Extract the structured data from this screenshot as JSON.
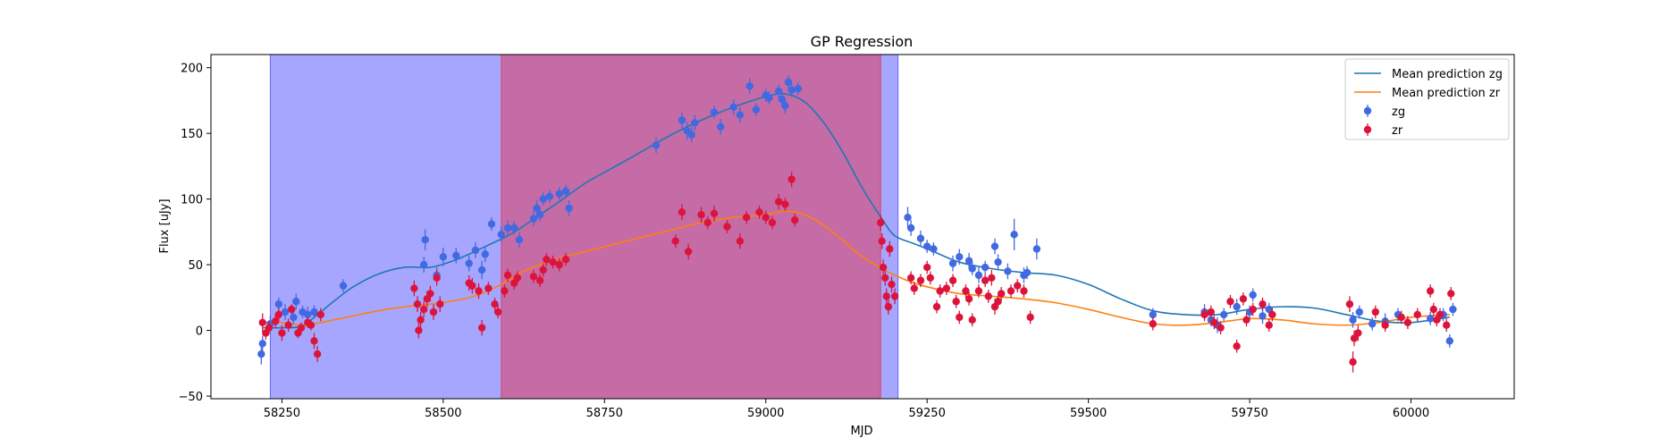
{
  "chart_data": {
    "type": "scatter",
    "title": "GP Regression",
    "xlabel": "MJD",
    "ylabel": "Flux [uJy]",
    "xlim": [
      58140,
      60160
    ],
    "ylim": [
      -52,
      210
    ],
    "xticks": [
      58250,
      58500,
      58750,
      59000,
      59250,
      59500,
      59750,
      60000
    ],
    "yticks": [
      -50,
      0,
      50,
      100,
      150,
      200
    ],
    "legend_position": "top-right",
    "grid": false,
    "shaded_regions": [
      {
        "x_start": 58232,
        "x_end": 59205,
        "color": "#0000ff",
        "alpha": 0.35
      },
      {
        "x_start": 58590,
        "x_end": 59178,
        "color": "#ff0000",
        "alpha": 0.35
      }
    ],
    "lines": [
      {
        "name": "Mean prediction zg",
        "color": "#1f77b4",
        "x": [
          58220,
          58250,
          58280,
          58300,
          58330,
          58360,
          58400,
          58440,
          58480,
          58510,
          58540,
          58570,
          58600,
          58620,
          58650,
          58680,
          58720,
          58760,
          58800,
          58850,
          58900,
          58950,
          59000,
          59030,
          59060,
          59090,
          59120,
          59150,
          59180,
          59200,
          59230,
          59260,
          59300,
          59350,
          59400,
          59450,
          59500,
          59550,
          59600,
          59650,
          59700,
          59750,
          59800,
          59850,
          59900,
          59950,
          60000,
          60060
        ],
        "y": [
          2,
          2,
          3,
          10,
          22,
          33,
          43,
          48,
          48,
          52,
          58,
          65,
          72,
          78,
          88,
          98,
          112,
          123,
          134,
          148,
          160,
          170,
          178,
          180,
          174,
          158,
          135,
          108,
          85,
          72,
          66,
          60,
          52,
          47,
          44,
          42,
          35,
          24,
          15,
          12,
          12,
          16,
          18,
          17,
          12,
          7,
          6,
          10
        ]
      },
      {
        "name": "Mean prediction zr",
        "color": "#ff7f0e",
        "x": [
          58220,
          58250,
          58280,
          58300,
          58330,
          58360,
          58400,
          58440,
          58480,
          58510,
          58540,
          58570,
          58600,
          58620,
          58650,
          58680,
          58720,
          58760,
          58800,
          58850,
          58900,
          58950,
          59000,
          59030,
          59060,
          59090,
          59120,
          59150,
          59180,
          59200,
          59230,
          59260,
          59300,
          59350,
          59400,
          59450,
          59500,
          59550,
          59600,
          59650,
          59700,
          59750,
          59800,
          59850,
          59900,
          59950,
          60000,
          60060
        ],
        "y": [
          6,
          6,
          4,
          5,
          8,
          11,
          15,
          18,
          20,
          22,
          25,
          30,
          38,
          44,
          50,
          55,
          60,
          65,
          70,
          76,
          82,
          86,
          88,
          91,
          88,
          80,
          68,
          56,
          47,
          42,
          36,
          32,
          28,
          26,
          24,
          21,
          16,
          10,
          5,
          4,
          6,
          9,
          8,
          5,
          4,
          6,
          10,
          12
        ]
      }
    ],
    "series": [
      {
        "name": "zg",
        "color": "#4169e1",
        "points": [
          [
            58218,
            -18,
            8
          ],
          [
            58220,
            -10,
            6
          ],
          [
            58232,
            5,
            6
          ],
          [
            58245,
            20,
            5
          ],
          [
            58255,
            14,
            6
          ],
          [
            58268,
            10,
            5
          ],
          [
            58272,
            22,
            6
          ],
          [
            58282,
            14,
            5
          ],
          [
            58290,
            12,
            6
          ],
          [
            58300,
            14,
            5
          ],
          [
            58345,
            34,
            5
          ],
          [
            58470,
            50,
            6
          ],
          [
            58472,
            69,
            8
          ],
          [
            58490,
            42,
            6
          ],
          [
            58500,
            56,
            7
          ],
          [
            58520,
            57,
            6
          ],
          [
            58540,
            51,
            6
          ],
          [
            58550,
            61,
            6
          ],
          [
            58560,
            46,
            7
          ],
          [
            58565,
            58,
            6
          ],
          [
            58575,
            81,
            5
          ],
          [
            58590,
            73,
            6
          ],
          [
            58600,
            78,
            6
          ],
          [
            58610,
            78,
            5
          ],
          [
            58618,
            69,
            6
          ],
          [
            58640,
            85,
            6
          ],
          [
            58645,
            93,
            6
          ],
          [
            58650,
            88,
            5
          ],
          [
            58655,
            100,
            5
          ],
          [
            58665,
            102,
            5
          ],
          [
            58680,
            104,
            5
          ],
          [
            58690,
            106,
            5
          ],
          [
            58695,
            93,
            6
          ],
          [
            58830,
            141,
            6
          ],
          [
            58870,
            160,
            6
          ],
          [
            58878,
            152,
            7
          ],
          [
            58885,
            149,
            6
          ],
          [
            58890,
            158,
            6
          ],
          [
            58920,
            166,
            5
          ],
          [
            58930,
            155,
            6
          ],
          [
            58950,
            170,
            6
          ],
          [
            58960,
            164,
            6
          ],
          [
            58975,
            186,
            6
          ],
          [
            58985,
            168,
            5
          ],
          [
            59000,
            179,
            5
          ],
          [
            59005,
            177,
            5
          ],
          [
            59020,
            182,
            5
          ],
          [
            59025,
            176,
            6
          ],
          [
            59030,
            171,
            6
          ],
          [
            59035,
            189,
            5
          ],
          [
            59040,
            183,
            5
          ],
          [
            59050,
            184,
            5
          ],
          [
            59220,
            86,
            8
          ],
          [
            59225,
            78,
            6
          ],
          [
            59240,
            70,
            6
          ],
          [
            59250,
            64,
            5
          ],
          [
            59260,
            62,
            5
          ],
          [
            59290,
            51,
            6
          ],
          [
            59300,
            56,
            6
          ],
          [
            59315,
            53,
            6
          ],
          [
            59320,
            47,
            5
          ],
          [
            59330,
            42,
            6
          ],
          [
            59340,
            48,
            5
          ],
          [
            59355,
            64,
            6
          ],
          [
            59360,
            52,
            6
          ],
          [
            59375,
            45,
            6
          ],
          [
            59385,
            73,
            12
          ],
          [
            59400,
            42,
            6
          ],
          [
            59405,
            44,
            5
          ],
          [
            59420,
            62,
            8
          ],
          [
            59600,
            12,
            5
          ],
          [
            59680,
            14,
            6
          ],
          [
            59690,
            8,
            5
          ],
          [
            59700,
            4,
            6
          ],
          [
            59710,
            12,
            5
          ],
          [
            59730,
            18,
            6
          ],
          [
            59750,
            14,
            5
          ],
          [
            59755,
            27,
            5
          ],
          [
            59770,
            11,
            6
          ],
          [
            59780,
            16,
            5
          ],
          [
            59910,
            8,
            6
          ],
          [
            59920,
            14,
            5
          ],
          [
            59940,
            5,
            5
          ],
          [
            59960,
            7,
            6
          ],
          [
            59980,
            12,
            5
          ],
          [
            60030,
            9,
            5
          ],
          [
            60050,
            12,
            5
          ],
          [
            60060,
            -8,
            5
          ],
          [
            60065,
            16,
            5
          ]
        ]
      },
      {
        "name": "zr",
        "color": "#dc143c",
        "points": [
          [
            58220,
            6,
            7
          ],
          [
            58225,
            -2,
            5
          ],
          [
            58230,
            2,
            5
          ],
          [
            58240,
            7,
            5
          ],
          [
            58245,
            12,
            5
          ],
          [
            58250,
            -2,
            6
          ],
          [
            58260,
            4,
            5
          ],
          [
            58265,
            16,
            4
          ],
          [
            58275,
            -2,
            4
          ],
          [
            58280,
            2,
            4
          ],
          [
            58290,
            6,
            4
          ],
          [
            58295,
            4,
            4
          ],
          [
            58300,
            -8,
            6
          ],
          [
            58305,
            -18,
            6
          ],
          [
            58310,
            12,
            5
          ],
          [
            58455,
            32,
            6
          ],
          [
            58460,
            20,
            6
          ],
          [
            58462,
            0,
            6
          ],
          [
            58465,
            8,
            6
          ],
          [
            58470,
            16,
            6
          ],
          [
            58475,
            24,
            6
          ],
          [
            58480,
            28,
            6
          ],
          [
            58485,
            14,
            6
          ],
          [
            58490,
            40,
            6
          ],
          [
            58495,
            20,
            6
          ],
          [
            58540,
            36,
            6
          ],
          [
            58545,
            34,
            6
          ],
          [
            58555,
            30,
            6
          ],
          [
            58560,
            2,
            6
          ],
          [
            58570,
            32,
            5
          ],
          [
            58580,
            20,
            5
          ],
          [
            58585,
            14,
            5
          ],
          [
            58595,
            30,
            5
          ],
          [
            58600,
            42,
            5
          ],
          [
            58610,
            36,
            5
          ],
          [
            58615,
            40,
            5
          ],
          [
            58640,
            41,
            5
          ],
          [
            58650,
            38,
            5
          ],
          [
            58655,
            46,
            5
          ],
          [
            58660,
            54,
            5
          ],
          [
            58670,
            52,
            5
          ],
          [
            58680,
            50,
            5
          ],
          [
            58690,
            54,
            5
          ],
          [
            58860,
            68,
            5
          ],
          [
            58870,
            90,
            6
          ],
          [
            58880,
            60,
            6
          ],
          [
            58900,
            88,
            6
          ],
          [
            58910,
            82,
            5
          ],
          [
            58920,
            89,
            6
          ],
          [
            58940,
            79,
            5
          ],
          [
            58960,
            68,
            6
          ],
          [
            58970,
            86,
            5
          ],
          [
            58990,
            90,
            5
          ],
          [
            59000,
            86,
            5
          ],
          [
            59010,
            82,
            5
          ],
          [
            59020,
            98,
            6
          ],
          [
            59030,
            96,
            5
          ],
          [
            59040,
            115,
            6
          ],
          [
            59045,
            84,
            5
          ],
          [
            59178,
            82,
            6
          ],
          [
            59180,
            68,
            6
          ],
          [
            59182,
            48,
            6
          ],
          [
            59185,
            40,
            6
          ],
          [
            59187,
            26,
            6
          ],
          [
            59190,
            18,
            6
          ],
          [
            59192,
            62,
            6
          ],
          [
            59195,
            35,
            6
          ],
          [
            59200,
            26,
            6
          ],
          [
            59225,
            40,
            5
          ],
          [
            59230,
            32,
            5
          ],
          [
            59240,
            38,
            5
          ],
          [
            59250,
            48,
            5
          ],
          [
            59255,
            40,
            5
          ],
          [
            59265,
            18,
            5
          ],
          [
            59270,
            30,
            5
          ],
          [
            59280,
            32,
            5
          ],
          [
            59290,
            38,
            5
          ],
          [
            59295,
            22,
            5
          ],
          [
            59300,
            10,
            5
          ],
          [
            59310,
            30,
            5
          ],
          [
            59315,
            24,
            5
          ],
          [
            59320,
            8,
            5
          ],
          [
            59330,
            30,
            5
          ],
          [
            59340,
            38,
            5
          ],
          [
            59345,
            26,
            5
          ],
          [
            59350,
            40,
            6
          ],
          [
            59355,
            18,
            6
          ],
          [
            59360,
            22,
            5
          ],
          [
            59365,
            28,
            5
          ],
          [
            59380,
            30,
            5
          ],
          [
            59390,
            34,
            5
          ],
          [
            59400,
            30,
            5
          ],
          [
            59410,
            10,
            5
          ],
          [
            59600,
            5,
            5
          ],
          [
            59680,
            12,
            5
          ],
          [
            59690,
            14,
            5
          ],
          [
            59695,
            6,
            5
          ],
          [
            59705,
            2,
            5
          ],
          [
            59720,
            22,
            5
          ],
          [
            59730,
            -12,
            5
          ],
          [
            59740,
            24,
            5
          ],
          [
            59745,
            8,
            5
          ],
          [
            59755,
            16,
            5
          ],
          [
            59770,
            20,
            5
          ],
          [
            59780,
            4,
            5
          ],
          [
            59785,
            12,
            5
          ],
          [
            59905,
            20,
            6
          ],
          [
            59910,
            -24,
            8
          ],
          [
            59912,
            -6,
            6
          ],
          [
            59918,
            -2,
            6
          ],
          [
            59945,
            14,
            5
          ],
          [
            59960,
            4,
            5
          ],
          [
            59985,
            10,
            5
          ],
          [
            59995,
            6,
            5
          ],
          [
            60010,
            12,
            5
          ],
          [
            60030,
            30,
            5
          ],
          [
            60035,
            16,
            5
          ],
          [
            60040,
            8,
            5
          ],
          [
            60045,
            12,
            5
          ],
          [
            60055,
            4,
            5
          ],
          [
            60062,
            28,
            5
          ]
        ]
      }
    ]
  }
}
